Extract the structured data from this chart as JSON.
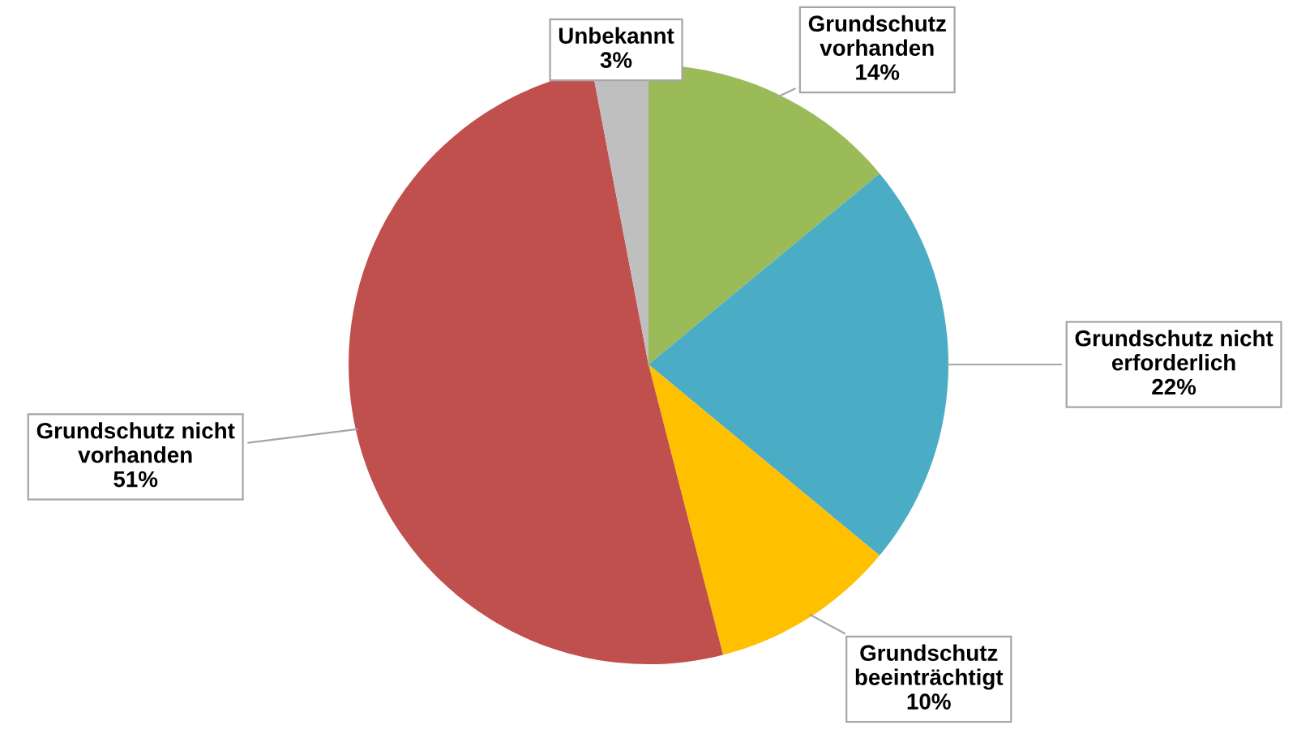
{
  "chart_data": {
    "type": "pie",
    "categories": [
      "Grundschutz\nvorhanden",
      "Grundschutz nicht\nerforderlich",
      "Grundschutz\nbeeinträchtigt",
      "Grundschutz nicht\nvorhanden",
      "Unbekannt"
    ],
    "values": [
      14,
      22,
      10,
      51,
      3
    ],
    "value_labels": [
      "14%",
      "22%",
      "10%",
      "51%",
      "3%"
    ],
    "colors": [
      "#9bbb59",
      "#4bacc6",
      "#ffc000",
      "#c0504d",
      "#bfbfbf"
    ],
    "legend": false
  }
}
